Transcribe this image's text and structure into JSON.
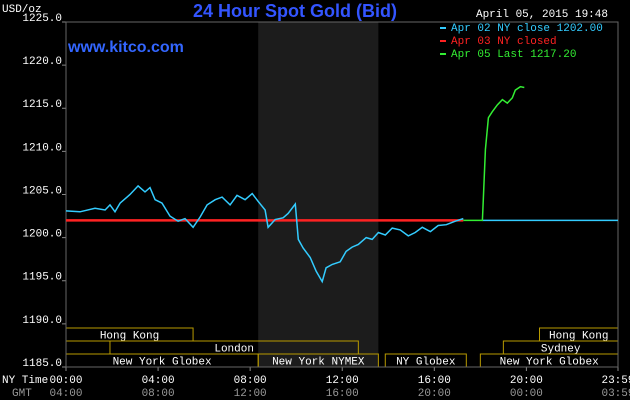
{
  "chart_data": {
    "type": "line",
    "title": "24 Hour Spot Gold (Bid)",
    "y_label": "USD/oz",
    "watermark": "www.kitco.com",
    "timestamp": "April 05, 2015 19:48",
    "x_label": "NY Time",
    "x2_label": "GMT",
    "xlim": [
      0,
      23.98
    ],
    "xticks": [
      {
        "value": 0,
        "label": "00:00"
      },
      {
        "value": 4,
        "label": "04:00"
      },
      {
        "value": 8,
        "label": "08:00"
      },
      {
        "value": 12,
        "label": "12:00"
      },
      {
        "value": 16,
        "label": "16:00"
      },
      {
        "value": 20,
        "label": "20:00"
      },
      {
        "value": 23.98,
        "label": "23:59"
      }
    ],
    "x2ticks": [
      {
        "value": 0,
        "label": "04:00"
      },
      {
        "value": 4,
        "label": "08:00"
      },
      {
        "value": 8,
        "label": "12:00"
      },
      {
        "value": 12,
        "label": "16:00"
      },
      {
        "value": 16,
        "label": "20:00"
      },
      {
        "value": 20,
        "label": "00:00"
      },
      {
        "value": 23.98,
        "label": "03:59"
      }
    ],
    "ylim": [
      1185,
      1225
    ],
    "yticks": [
      {
        "value": 1185,
        "label": "1185.0"
      },
      {
        "value": 1190,
        "label": "1190.0"
      },
      {
        "value": 1195,
        "label": "1195.0"
      },
      {
        "value": 1200,
        "label": "1200.0"
      },
      {
        "value": 1205,
        "label": "1205.0"
      },
      {
        "value": 1210,
        "label": "1210.0"
      },
      {
        "value": 1215,
        "label": "1215.0"
      },
      {
        "value": 1220,
        "label": "1220.0"
      },
      {
        "value": 1225,
        "label": "1225.0"
      }
    ],
    "shade": [
      8.35,
      13.57
    ],
    "series": [
      {
        "name": "Apr 02 NY close 1202.00",
        "color": "#33ccff",
        "x": [
          0,
          0.61,
          1.26,
          1.7,
          1.91,
          2.13,
          2.35,
          2.78,
          3.13,
          3.43,
          3.65,
          3.87,
          4.17,
          4.52,
          4.87,
          5.17,
          5.52,
          5.83,
          6.13,
          6.48,
          6.78,
          7.13,
          7.43,
          7.78,
          8.09,
          8.35,
          8.65,
          8.78,
          9.09,
          9.43,
          9.65,
          9.96,
          10.09,
          10.3,
          10.61,
          10.87,
          11.13,
          11.3,
          11.57,
          11.91,
          12.17,
          12.43,
          12.7,
          13.04,
          13.3,
          13.57,
          13.87,
          14.17,
          14.52,
          14.87,
          15.17,
          15.48,
          15.83,
          16.17,
          16.52,
          16.91,
          17.26,
          null,
          18.09,
          23.98
        ],
        "values": [
          1203.1,
          1203.0,
          1203.4,
          1203.2,
          1203.8,
          1203.0,
          1204.0,
          1205.0,
          1206.0,
          1205.3,
          1205.8,
          1204.4,
          1204.0,
          1202.5,
          1201.9,
          1202.2,
          1201.2,
          1202.4,
          1203.8,
          1204.4,
          1204.7,
          1203.8,
          1204.9,
          1204.4,
          1205.1,
          1204.2,
          1203.2,
          1201.2,
          1202.1,
          1202.3,
          1202.8,
          1203.9,
          1199.8,
          1198.8,
          1197.7,
          1196.1,
          1194.9,
          1196.5,
          1196.9,
          1197.2,
          1198.4,
          1198.9,
          1199.2,
          1200.0,
          1199.8,
          1200.6,
          1200.3,
          1201.1,
          1200.9,
          1200.2,
          1200.6,
          1201.2,
          1200.7,
          1201.4,
          1201.5,
          1201.9,
          1202.2,
          null,
          1202.0,
          1202.0
        ]
      },
      {
        "name": "Apr 03 NY closed",
        "color": "#ff2222",
        "x": [
          0,
          17.26
        ],
        "values": [
          1202.0,
          1202.0
        ]
      },
      {
        "name": "Apr 05 Last 1217.20",
        "color": "#33ee33",
        "x": [
          17.26,
          18.09,
          18.13,
          18.22,
          18.35,
          18.52,
          18.74,
          18.96,
          19.17,
          19.39,
          19.52,
          19.74,
          19.91
        ],
        "values": [
          1202.0,
          1202.0,
          1204.4,
          1210.2,
          1213.9,
          1214.6,
          1215.4,
          1216.0,
          1215.6,
          1216.2,
          1217.1,
          1217.5,
          1217.4
        ]
      }
    ],
    "sessions": [
      [
        {
          "label": "Hong Kong",
          "start": 0,
          "end": 5.52
        },
        {
          "label": "Hong Kong",
          "start": 20.57,
          "end": 23.98
        }
      ],
      [
        {
          "label": "London",
          "start": 1.91,
          "end": 12.7
        },
        {
          "label": "Sydney",
          "start": 19.0,
          "end": 23.98
        }
      ],
      [
        {
          "label": "New York Globex",
          "start": 0,
          "end": 8.35
        },
        {
          "label": "New York NYMEX",
          "start": 8.35,
          "end": 13.57
        },
        {
          "label": "NY Globex",
          "start": 13.87,
          "end": 17.39
        },
        {
          "label": "New York Globex",
          "start": 18.0,
          "end": 23.98
        }
      ]
    ]
  }
}
